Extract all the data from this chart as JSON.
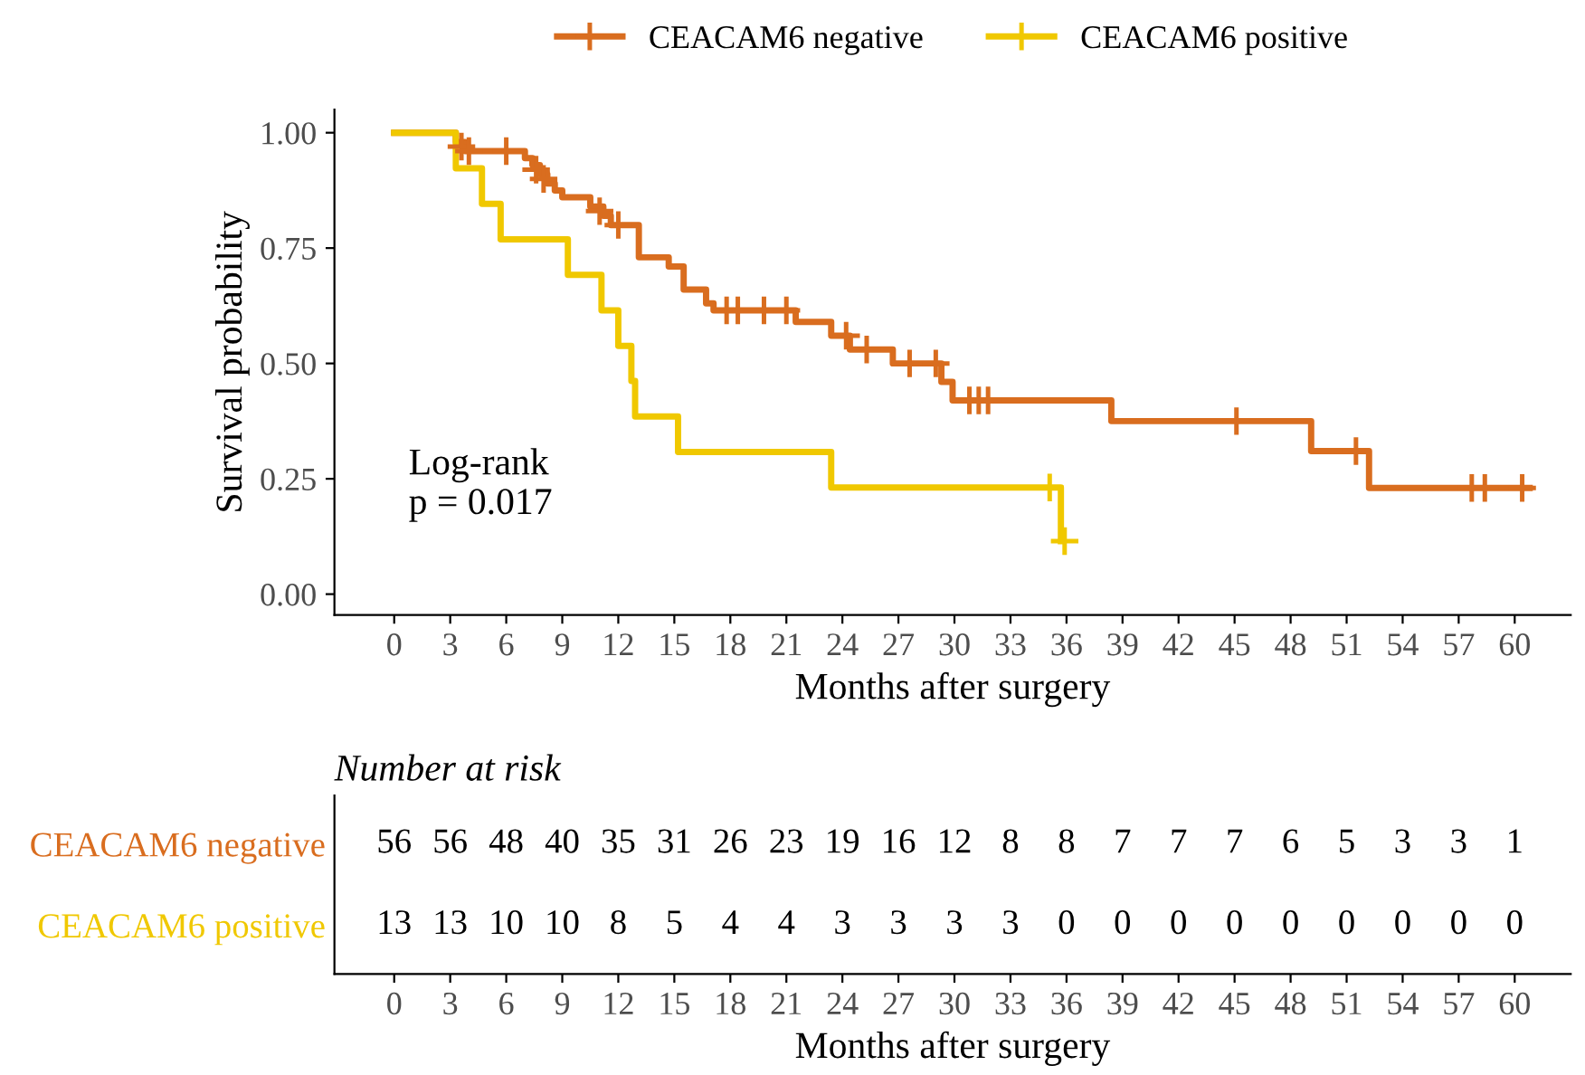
{
  "chart_data": [
    {
      "type": "step",
      "ylabel": "Survival probability",
      "xlabel": "Months after surgery",
      "xlim": [
        -3.2,
        63
      ],
      "ylim": [
        -0.045,
        1.05
      ],
      "xticks": [
        0,
        3,
        6,
        9,
        12,
        15,
        18,
        21,
        24,
        27,
        30,
        33,
        36,
        39,
        42,
        45,
        48,
        51,
        54,
        57,
        60
      ],
      "yticks": [
        {
          "value": 0,
          "label": "0.00"
        },
        {
          "value": 0.25,
          "label": "0.25"
        },
        {
          "value": 0.5,
          "label": "0.50"
        },
        {
          "value": 0.75,
          "label": "0.75"
        },
        {
          "value": 1,
          "label": "1.00"
        }
      ],
      "legend": "top",
      "grid": false,
      "annotations": [
        "Log-rank\np = 0.017"
      ],
      "series": [
        {
          "name": "CEACAM6 negative",
          "color": "#d96d1f",
          "x": [
            0,
            3.3,
            3.8,
            7.0,
            7.4,
            7.8,
            8.2,
            8.6,
            9.0,
            10.5,
            11.2,
            11.6,
            13.1,
            14.7,
            15.5,
            16.7,
            17.1,
            21.5,
            23.4,
            24.4,
            26.7,
            29.3,
            29.9,
            38.4,
            49.1,
            52.2,
            60.8
          ],
          "values": [
            1.0,
            0.98,
            0.96,
            0.945,
            0.93,
            0.91,
            0.89,
            0.875,
            0.86,
            0.84,
            0.82,
            0.8,
            0.73,
            0.71,
            0.66,
            0.63,
            0.615,
            0.59,
            0.56,
            0.53,
            0.5,
            0.46,
            0.42,
            0.375,
            0.31,
            0.23,
            0.23
          ]
        },
        {
          "name": "CEACAM6 positive",
          "color": "#f0c800",
          "x": [
            0,
            3.3,
            4.7,
            5.7,
            9.3,
            11.1,
            12.0,
            12.7,
            12.9,
            15.2,
            23.4,
            35.7
          ],
          "values": [
            1.0,
            0.923,
            0.846,
            0.769,
            0.692,
            0.615,
            0.538,
            0.462,
            0.385,
            0.308,
            0.231,
            0.115
          ]
        },
        {
          "type": "scatter",
          "color": "#d96d1f",
          "marker": "cross",
          "x": [
            3.6,
            4.0,
            6.0,
            7.6,
            8.0,
            11.0,
            12.0,
            17.8,
            18.4,
            19.8,
            21.0,
            24.2,
            25.3,
            27.6,
            29.0,
            30.8,
            31.3,
            31.8,
            45.1,
            51.5,
            57.7,
            58.4,
            60.4
          ],
          "values": [
            0.97,
            0.96,
            0.96,
            0.92,
            0.9,
            0.83,
            0.8,
            0.615,
            0.615,
            0.615,
            0.615,
            0.56,
            0.53,
            0.5,
            0.5,
            0.42,
            0.42,
            0.42,
            0.375,
            0.31,
            0.23,
            0.23,
            0.23
          ]
        },
        {
          "type": "scatter",
          "color": "#f0c800",
          "marker": "cross",
          "x": [
            35.1,
            35.9
          ],
          "values": [
            0.231,
            0.115
          ]
        }
      ]
    },
    {
      "type": "heatmap",
      "title": "Number at risk",
      "xlabel": "Months after surgery",
      "categories": [
        "0",
        "3",
        "6",
        "9",
        "12",
        "15",
        "18",
        "21",
        "24",
        "27",
        "30",
        "33",
        "36",
        "39",
        "42",
        "45",
        "48",
        "51",
        "54",
        "57",
        "60"
      ],
      "y_categories": [
        "CEACAM6 negative",
        "CEACAM6 positive"
      ],
      "colors": [
        "#d96d1f",
        "#f0c800"
      ],
      "data_labels": true,
      "cells": [
        [
          56,
          56,
          48,
          40,
          35,
          31,
          26,
          23,
          19,
          16,
          12,
          8,
          8,
          7,
          7,
          7,
          6,
          5,
          3,
          3,
          1
        ],
        [
          13,
          13,
          10,
          10,
          8,
          5,
          4,
          4,
          3,
          3,
          3,
          3,
          0,
          0,
          0,
          0,
          0,
          0,
          0,
          0,
          0
        ]
      ]
    }
  ]
}
